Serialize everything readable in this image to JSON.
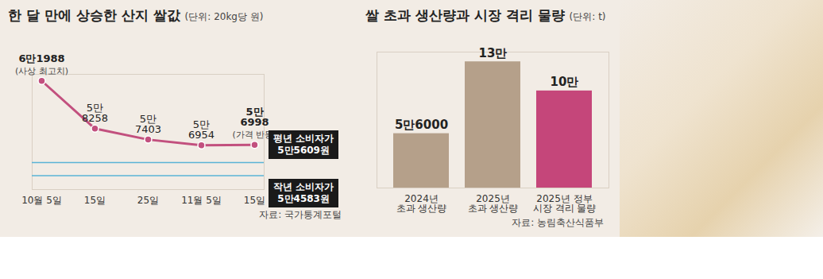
{
  "chart_data": [
    {
      "type": "line",
      "title": "한 달 만에 상승한 산지 쌀값",
      "subtitle": "(단위: 20kg당 원)",
      "categories": [
        "10월 5일",
        "15일",
        "25일",
        "11월 5일",
        "15일"
      ],
      "values": [
        61988,
        58258,
        57403,
        56954,
        56998
      ],
      "value_labels": [
        "6만1988",
        "5만\n8258",
        "5만\n7403",
        "5만\n6954",
        "5만\n6998"
      ],
      "data_labels": true,
      "color": "#c2507e",
      "marker": "circle",
      "annotations": [
        {
          "index": 0,
          "text": "(사상 최고치)"
        },
        {
          "index": 4,
          "text": "(가격 반등)"
        }
      ],
      "reference_lines": [
        {
          "value": 55609,
          "label": "평년 소비자가\n5만5609원",
          "color": "#5ab4d6"
        },
        {
          "value": 54583,
          "label": "작년 소비자가\n5만4583원",
          "color": "#5ab4d6"
        }
      ],
      "ylim": [
        53500,
        62500
      ],
      "tick_labels": "x",
      "grid": false,
      "source": "자료: 국가통계포털"
    },
    {
      "type": "bar",
      "title": "쌀 초과 생산량과 시장 격리 물량",
      "subtitle": "(단위: t)",
      "categories": [
        "2024년\n초과 생산량",
        "2025년\n초과 생산량",
        "2025년 정부\n시장 격리 물량"
      ],
      "values": [
        56000,
        130000,
        100000
      ],
      "value_labels": [
        "5만6000",
        "13만",
        "10만"
      ],
      "colors": [
        "#b5a08a",
        "#b5a08a",
        "#c5467a"
      ],
      "data_labels": true,
      "ylim": [
        0,
        140000
      ],
      "tick_labels": "x",
      "grid": false,
      "source": "자료: 농림축산식품부"
    }
  ]
}
